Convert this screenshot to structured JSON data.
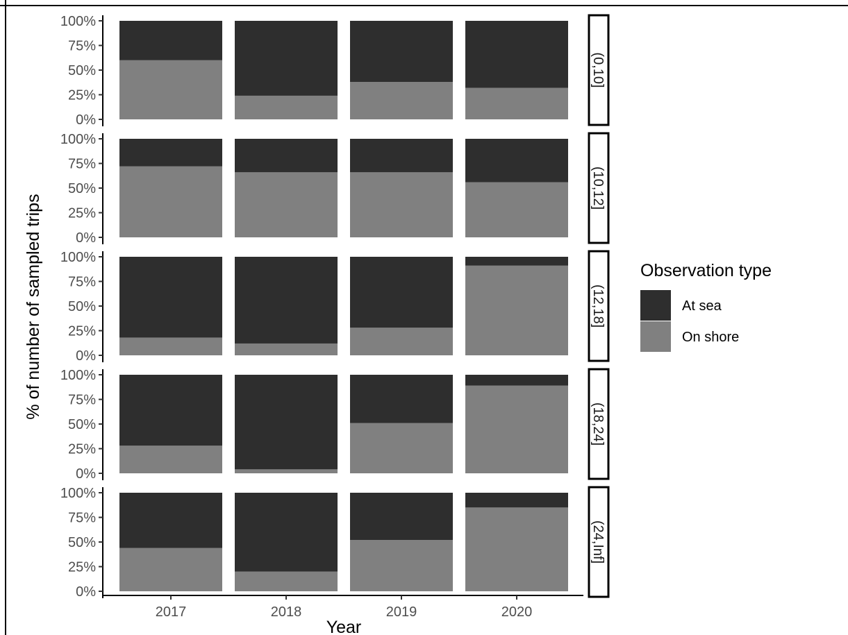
{
  "chart_data": {
    "type": "bar",
    "stacked": true,
    "percent": true,
    "xlabel": "Year",
    "ylabel": "% of number of sampled trips",
    "categories": [
      "2017",
      "2018",
      "2019",
      "2020"
    ],
    "yticks": [
      "0%",
      "25%",
      "50%",
      "75%",
      "100%"
    ],
    "ylim": [
      0,
      100
    ],
    "legend": {
      "title": "Observation type",
      "placement": "right",
      "items": [
        {
          "label": "At sea",
          "color": "#2e2e2e"
        },
        {
          "label": "On shore",
          "color": "#808080"
        }
      ]
    },
    "panels": [
      {
        "label": "(0,10]",
        "on_shore": [
          60,
          24,
          38,
          32
        ],
        "at_sea": [
          40,
          76,
          62,
          68
        ]
      },
      {
        "label": "(10,12]",
        "on_shore": [
          72,
          66,
          66,
          56
        ],
        "at_sea": [
          28,
          34,
          34,
          44
        ]
      },
      {
        "label": "(12,18]",
        "on_shore": [
          18,
          12,
          28,
          91
        ],
        "at_sea": [
          82,
          88,
          72,
          9
        ]
      },
      {
        "label": "(18,24]",
        "on_shore": [
          28,
          4,
          51,
          89
        ],
        "at_sea": [
          72,
          96,
          49,
          11
        ]
      },
      {
        "label": "(24,Inf]",
        "on_shore": [
          44,
          20,
          52,
          85
        ],
        "at_sea": [
          56,
          80,
          48,
          15
        ]
      }
    ],
    "grid": false
  }
}
